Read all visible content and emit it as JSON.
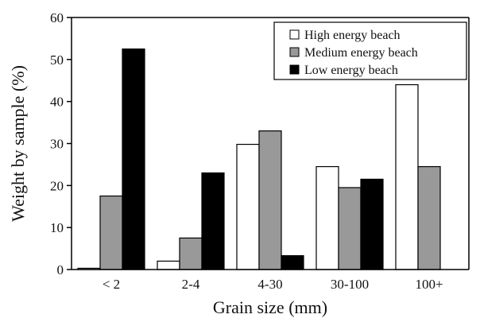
{
  "chart_data": {
    "type": "bar",
    "title": "",
    "xlabel": "Grain size (mm)",
    "ylabel": "Weight by sample (%)",
    "ylim": [
      0,
      60
    ],
    "yticks": [
      "0",
      "10",
      "20",
      "30",
      "40",
      "50",
      "60"
    ],
    "categories": [
      "< 2",
      "2-4",
      "4-30",
      "30-100",
      "100+"
    ],
    "series": [
      {
        "name": "High energy beach",
        "color": "#ffffff",
        "values": [
          0.3,
          2,
          29.8,
          24.5,
          44
        ]
      },
      {
        "name": "Medium energy beach",
        "color": "#999999",
        "values": [
          17.5,
          7.5,
          33,
          19.5,
          24.5
        ]
      },
      {
        "name": "Low energy beach",
        "color": "#000000",
        "values": [
          52.5,
          23,
          3.3,
          21.5,
          0
        ]
      }
    ],
    "legend_position": "top-right",
    "grid": false
  }
}
